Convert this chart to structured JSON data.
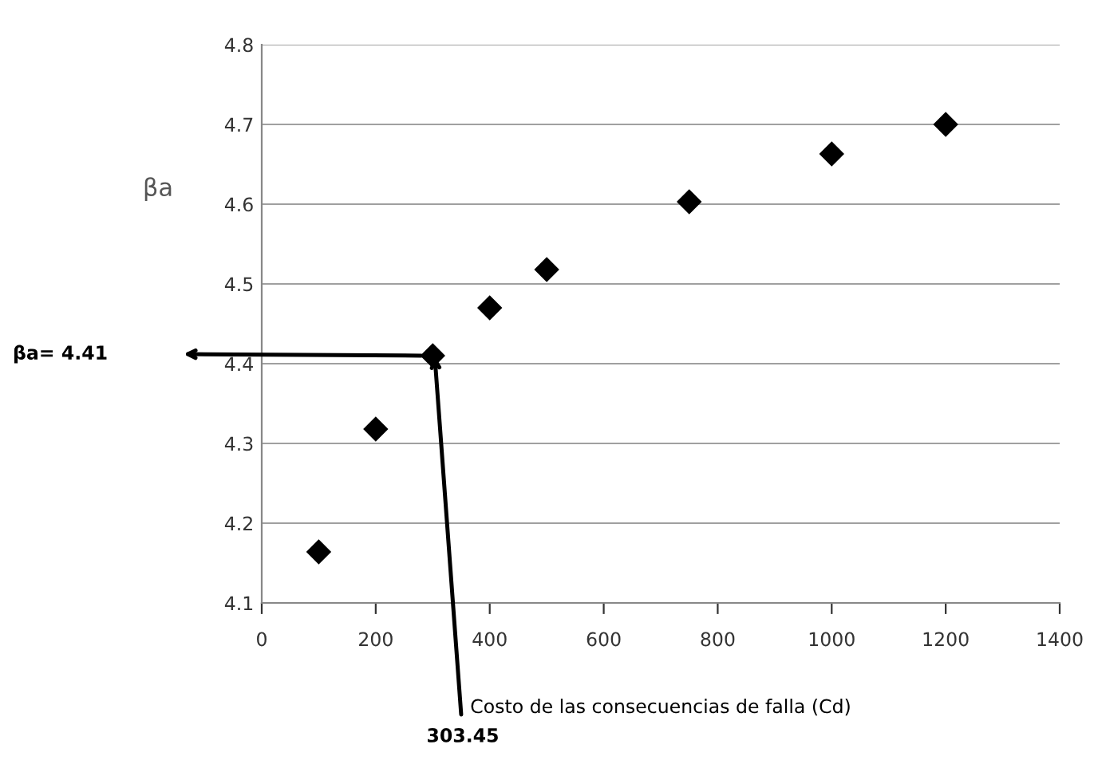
{
  "chart_data": {
    "type": "scatter",
    "x": [
      100,
      200,
      300,
      400,
      500,
      750,
      1000,
      1200
    ],
    "values": [
      4.164,
      4.318,
      4.41,
      4.47,
      4.518,
      4.603,
      4.663,
      4.7
    ],
    "color": "#000000",
    "marker": "diamond",
    "xlabel": "Costo de las consecuencias de falla (Cd)",
    "ylabel": "βa",
    "xlim": [
      0,
      1400
    ],
    "xticks": [
      0,
      200,
      400,
      600,
      800,
      1000,
      1200,
      1400
    ],
    "ylim": [
      4.1,
      4.8
    ],
    "yticks": [
      4.1,
      4.2,
      4.3,
      4.4,
      4.5,
      4.6,
      4.7,
      4.8
    ],
    "grid": "y",
    "annotations": [
      "βa= 4.41",
      {
        "text": "303.45",
        "x": 303.45,
        "y": 4.41
      }
    ]
  }
}
